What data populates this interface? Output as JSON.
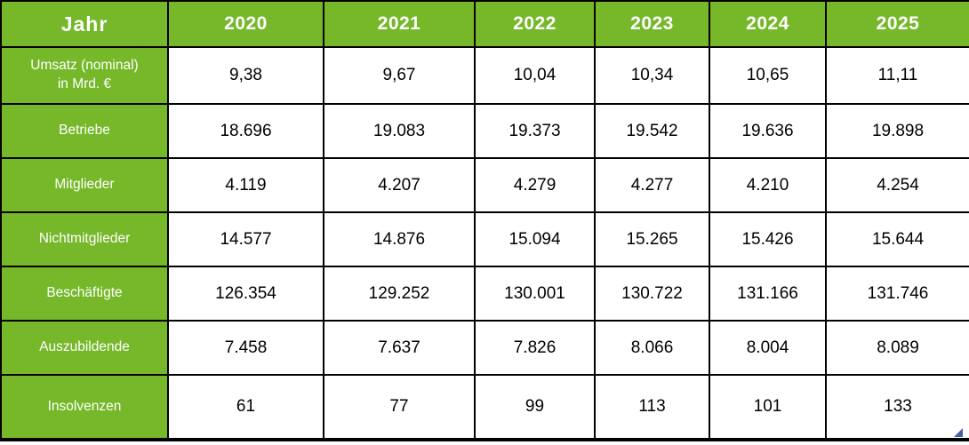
{
  "chart_data": {
    "type": "table",
    "categories": [
      "2020",
      "2021",
      "2022",
      "2023",
      "2024",
      "2025"
    ],
    "series": [
      {
        "name": "Umsatz (nominal) in Mrd. €",
        "values": [
          9.38,
          9.67,
          10.04,
          10.34,
          10.65,
          11.11
        ]
      },
      {
        "name": "Betriebe",
        "values": [
          18696,
          19083,
          19373,
          19542,
          19636,
          19898
        ]
      },
      {
        "name": "Mitglieder",
        "values": [
          4119,
          4207,
          4279,
          4277,
          4210,
          4254
        ]
      },
      {
        "name": "Nichtmitglieder",
        "values": [
          14577,
          14876,
          15094,
          15265,
          15426,
          15644
        ]
      },
      {
        "name": "Beschäftigte",
        "values": [
          126354,
          129252,
          130001,
          130722,
          131166,
          131746
        ]
      },
      {
        "name": "Auszubildende",
        "values": [
          7458,
          7637,
          7826,
          8066,
          8004,
          8089
        ]
      },
      {
        "name": "Insolvenzen",
        "values": [
          61,
          77,
          99,
          113,
          101,
          133
        ]
      }
    ],
    "layout": {
      "header_row": true,
      "label_column": true,
      "grid": true
    }
  },
  "table": {
    "corner_label": "Jahr",
    "years": [
      "2020",
      "2021",
      "2022",
      "2023",
      "2024",
      "2025"
    ],
    "rows": [
      {
        "label": "Umsatz (nominal)\nin Mrd. €",
        "values": [
          "9,38",
          "9,67",
          "10,04",
          "10,34",
          "10,65",
          "11,11"
        ]
      },
      {
        "label": "Betriebe",
        "values": [
          "18.696",
          "19.083",
          "19.373",
          "19.542",
          "19.636",
          "19.898"
        ]
      },
      {
        "label": "Mitglieder",
        "values": [
          "4.119",
          "4.207",
          "4.279",
          "4.277",
          "4.210",
          "4.254"
        ]
      },
      {
        "label": "Nichtmitglieder",
        "values": [
          "14.577",
          "14.876",
          "15.094",
          "15.265",
          "15.426",
          "15.644"
        ]
      },
      {
        "label": "Beschäftigte",
        "values": [
          "126.354",
          "129.252",
          "130.001",
          "130.722",
          "131.166",
          "131.746"
        ]
      },
      {
        "label": "Auszubildende",
        "values": [
          "7.458",
          "7.637",
          "7.826",
          "8.066",
          "8.004",
          "8.089"
        ]
      },
      {
        "label": "Insolvenzen",
        "values": [
          "61",
          "77",
          "99",
          "113",
          "101",
          "133"
        ]
      }
    ],
    "colors": {
      "accent_green": "#76b82a",
      "border": "#000000",
      "header_text": "#ffffff",
      "data_text": "#000000",
      "corner_mark_blue": "#4a5fa8"
    }
  }
}
